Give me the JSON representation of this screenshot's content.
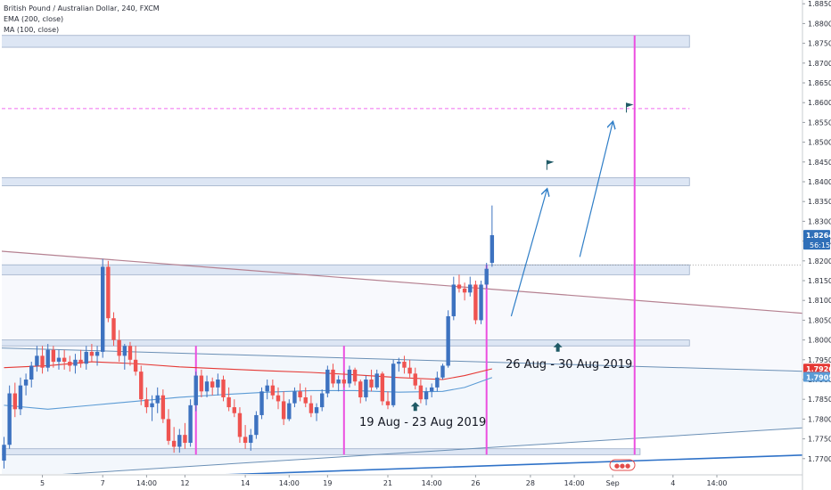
{
  "legend": {
    "symbol": "British Pound / Australian Dollar, 240, FXCM",
    "ema": "EMA (200, close)",
    "ma": "MA (100, close)"
  },
  "annotations": {
    "week1": "19 Aug - 23 Aug 2019",
    "week2": "26 Aug - 30 Aug 2019"
  },
  "colors": {
    "up": "#3d72c0",
    "down": "#ef5350",
    "ema": "#e53935",
    "ma": "#5b9bd5",
    "zone_fill": "#dde6f4",
    "zone_stroke": "#9cadc8",
    "vline": "#ec4fe0",
    "target": "#f06cf0",
    "trend_upper": "#b58191",
    "trend_mid": "#6a8fb5",
    "trend_lower": "#2f72c8",
    "arrow": "#2f7ec7",
    "marker": "#1f5a66"
  },
  "badges": {
    "price": {
      "value": "1.82645",
      "timer": "56:15",
      "color": "#2f6fb8"
    },
    "ema": {
      "value": "1.79265",
      "color": "#e53935"
    },
    "ma": {
      "value": "1.79055",
      "color": "#5b9bd5"
    }
  },
  "watermark": "●●●",
  "chart_data": {
    "type": "candlestick",
    "title": "British Pound / Australian Dollar, 240, FXCM",
    "y_axis": {
      "range": [
        1.765,
        1.8855
      ],
      "ticks": [
        "1.77000",
        "1.77500",
        "1.78000",
        "1.78500",
        "1.79000",
        "1.79500",
        "1.80000",
        "1.80500",
        "1.81000",
        "1.81500",
        "1.82000",
        "1.82500",
        "1.83000",
        "1.83500",
        "1.84000",
        "1.84500",
        "1.85000",
        "1.85500",
        "1.86000",
        "1.86500",
        "1.87000",
        "1.87500",
        "1.88000",
        "1.88500"
      ]
    },
    "x_axis": {
      "labels": [
        {
          "label": "5",
          "bar": 7
        },
        {
          "label": "7",
          "bar": 18
        },
        {
          "label": "14:00",
          "bar": 26
        },
        {
          "label": "12",
          "bar": 33
        },
        {
          "label": "14",
          "bar": 44
        },
        {
          "label": "14:00",
          "bar": 52
        },
        {
          "label": "19",
          "bar": 59
        },
        {
          "label": "21",
          "bar": 70
        },
        {
          "label": "14:00",
          "bar": 78
        },
        {
          "label": "26",
          "bar": 86
        },
        {
          "label": "28",
          "bar": 96
        },
        {
          "label": "14:00",
          "bar": 104
        },
        {
          "label": "Sep",
          "bar": 111
        },
        {
          "label": "4",
          "bar": 122
        },
        {
          "label": "14:00",
          "bar": 130
        }
      ]
    },
    "candles_ohlc": [
      [
        1.7695,
        1.7755,
        1.7675,
        1.7735
      ],
      [
        1.7735,
        1.7885,
        1.7725,
        1.7865
      ],
      [
        1.7865,
        1.7892,
        1.7805,
        1.7825
      ],
      [
        1.7825,
        1.7905,
        1.781,
        1.7885
      ],
      [
        1.7885,
        1.7915,
        1.786,
        1.79
      ],
      [
        1.79,
        1.7945,
        1.788,
        1.7935
      ],
      [
        1.7935,
        1.7985,
        1.792,
        1.796
      ],
      [
        1.796,
        1.7985,
        1.7915,
        1.793
      ],
      [
        1.793,
        1.799,
        1.792,
        1.7975
      ],
      [
        1.7975,
        1.7985,
        1.793,
        1.7945
      ],
      [
        1.7945,
        1.7975,
        1.7925,
        1.7955
      ],
      [
        1.7955,
        1.7975,
        1.7925,
        1.7945
      ],
      [
        1.7945,
        1.796,
        1.792,
        1.7935
      ],
      [
        1.7935,
        1.7965,
        1.7915,
        1.795
      ],
      [
        1.795,
        1.7975,
        1.793,
        1.794
      ],
      [
        1.794,
        1.7985,
        1.7925,
        1.797
      ],
      [
        1.797,
        1.799,
        1.7945,
        1.796
      ],
      [
        1.796,
        1.7985,
        1.7935,
        1.797
      ],
      [
        1.797,
        1.8205,
        1.7955,
        1.8185
      ],
      [
        1.8185,
        1.82,
        1.8045,
        1.8055
      ],
      [
        1.8055,
        1.807,
        1.7985,
        1.8
      ],
      [
        1.8,
        1.8025,
        1.7945,
        1.796
      ],
      [
        1.796,
        1.799,
        1.7925,
        1.7985
      ],
      [
        1.7985,
        1.7995,
        1.7935,
        1.795
      ],
      [
        1.795,
        1.7985,
        1.791,
        1.792
      ],
      [
        1.792,
        1.7935,
        1.7835,
        1.785
      ],
      [
        1.785,
        1.788,
        1.7815,
        1.783
      ],
      [
        1.783,
        1.786,
        1.7795,
        1.784
      ],
      [
        1.784,
        1.788,
        1.7815,
        1.786
      ],
      [
        1.786,
        1.7875,
        1.779,
        1.78
      ],
      [
        1.78,
        1.7825,
        1.7735,
        1.7745
      ],
      [
        1.7745,
        1.778,
        1.7715,
        1.773
      ],
      [
        1.773,
        1.7775,
        1.7715,
        1.776
      ],
      [
        1.776,
        1.779,
        1.7725,
        1.774
      ],
      [
        1.774,
        1.785,
        1.773,
        1.7835
      ],
      [
        1.7835,
        1.792,
        1.782,
        1.791
      ],
      [
        1.791,
        1.7925,
        1.7855,
        1.787
      ],
      [
        1.787,
        1.791,
        1.7855,
        1.7895
      ],
      [
        1.7895,
        1.7905,
        1.786,
        1.788
      ],
      [
        1.788,
        1.7915,
        1.786,
        1.79
      ],
      [
        1.79,
        1.791,
        1.7845,
        1.7855
      ],
      [
        1.7855,
        1.788,
        1.782,
        1.783
      ],
      [
        1.783,
        1.785,
        1.7805,
        1.7815
      ],
      [
        1.7815,
        1.783,
        1.774,
        1.7755
      ],
      [
        1.7755,
        1.7785,
        1.7725,
        1.774
      ],
      [
        1.774,
        1.7775,
        1.772,
        1.776
      ],
      [
        1.776,
        1.782,
        1.775,
        1.781
      ],
      [
        1.781,
        1.788,
        1.78,
        1.787
      ],
      [
        1.787,
        1.79,
        1.785,
        1.7885
      ],
      [
        1.7885,
        1.79,
        1.785,
        1.786
      ],
      [
        1.786,
        1.788,
        1.7825,
        1.7845
      ],
      [
        1.7845,
        1.787,
        1.7785,
        1.78
      ],
      [
        1.78,
        1.785,
        1.7795,
        1.784
      ],
      [
        1.784,
        1.788,
        1.783,
        1.787
      ],
      [
        1.787,
        1.789,
        1.7845,
        1.7855
      ],
      [
        1.7855,
        1.788,
        1.783,
        1.784
      ],
      [
        1.784,
        1.786,
        1.7805,
        1.7815
      ],
      [
        1.7815,
        1.784,
        1.7795,
        1.783
      ],
      [
        1.783,
        1.7875,
        1.782,
        1.7865
      ],
      [
        1.7865,
        1.7935,
        1.7855,
        1.7925
      ],
      [
        1.7925,
        1.794,
        1.788,
        1.789
      ],
      [
        1.789,
        1.791,
        1.787,
        1.79
      ],
      [
        1.79,
        1.792,
        1.788,
        1.789
      ],
      [
        1.789,
        1.7935,
        1.788,
        1.7925
      ],
      [
        1.7925,
        1.793,
        1.7885,
        1.7895
      ],
      [
        1.7895,
        1.79,
        1.784,
        1.7855
      ],
      [
        1.7855,
        1.791,
        1.7845,
        1.79
      ],
      [
        1.79,
        1.7925,
        1.787,
        1.788
      ],
      [
        1.788,
        1.7925,
        1.7875,
        1.7915
      ],
      [
        1.7915,
        1.792,
        1.7835,
        1.7845
      ],
      [
        1.7845,
        1.787,
        1.7825,
        1.7835
      ],
      [
        1.7835,
        1.795,
        1.783,
        1.794
      ],
      [
        1.794,
        1.7955,
        1.792,
        1.7945
      ],
      [
        1.7945,
        1.796,
        1.7915,
        1.793
      ],
      [
        1.793,
        1.795,
        1.7905,
        1.7915
      ],
      [
        1.7915,
        1.793,
        1.7875,
        1.7885
      ],
      [
        1.7885,
        1.79,
        1.784,
        1.785
      ],
      [
        1.785,
        1.788,
        1.7835,
        1.787
      ],
      [
        1.787,
        1.789,
        1.7855,
        1.788
      ],
      [
        1.788,
        1.792,
        1.787,
        1.7905
      ],
      [
        1.7905,
        1.794,
        1.79,
        1.7935
      ],
      [
        1.7935,
        1.8075,
        1.793,
        1.806
      ],
      [
        1.806,
        1.816,
        1.805,
        1.814
      ],
      [
        1.814,
        1.8165,
        1.812,
        1.813
      ],
      [
        1.813,
        1.8145,
        1.81,
        1.812
      ],
      [
        1.812,
        1.816,
        1.811,
        1.814
      ],
      [
        1.814,
        1.815,
        1.804,
        1.805
      ],
      [
        1.805,
        1.815,
        1.804,
        1.814
      ],
      [
        1.814,
        1.8195,
        1.813,
        1.818
      ],
      [
        1.8195,
        1.834,
        1.8185,
        1.8265
      ]
    ],
    "ema_200": [
      {
        "bar": 0,
        "v": 1.793
      },
      {
        "bar": 8,
        "v": 1.7935
      },
      {
        "bar": 16,
        "v": 1.7945
      },
      {
        "bar": 24,
        "v": 1.794
      },
      {
        "bar": 32,
        "v": 1.7932
      },
      {
        "bar": 40,
        "v": 1.7927
      },
      {
        "bar": 48,
        "v": 1.7922
      },
      {
        "bar": 56,
        "v": 1.7918
      },
      {
        "bar": 64,
        "v": 1.7912
      },
      {
        "bar": 72,
        "v": 1.7905
      },
      {
        "bar": 80,
        "v": 1.79
      },
      {
        "bar": 84,
        "v": 1.791
      },
      {
        "bar": 89,
        "v": 1.7927
      }
    ],
    "ma_100": [
      {
        "bar": 0,
        "v": 1.7835
      },
      {
        "bar": 8,
        "v": 1.7825
      },
      {
        "bar": 16,
        "v": 1.7835
      },
      {
        "bar": 24,
        "v": 1.7845
      },
      {
        "bar": 32,
        "v": 1.7855
      },
      {
        "bar": 40,
        "v": 1.7862
      },
      {
        "bar": 48,
        "v": 1.7868
      },
      {
        "bar": 56,
        "v": 1.7872
      },
      {
        "bar": 64,
        "v": 1.7872
      },
      {
        "bar": 72,
        "v": 1.7868
      },
      {
        "bar": 80,
        "v": 1.787
      },
      {
        "bar": 84,
        "v": 1.788
      },
      {
        "bar": 89,
        "v": 1.7905
      }
    ],
    "zones": [
      {
        "from_bar": -1,
        "to_bar": 125,
        "top": 1.877,
        "bottom": 1.874
      },
      {
        "from_bar": -1,
        "to_bar": 125,
        "top": 1.841,
        "bottom": 1.839
      },
      {
        "from_bar": -1,
        "to_bar": 125,
        "top": 1.819,
        "bottom": 1.8165
      },
      {
        "from_bar": -1,
        "to_bar": 125,
        "top": 1.8,
        "bottom": 1.7985
      },
      {
        "from_bar": -1,
        "to_bar": 116,
        "top": 1.7725,
        "bottom": 1.771
      }
    ],
    "trendlines": [
      {
        "name": "upper",
        "from": {
          "bar": -1,
          "v": 1.8225
        },
        "to": {
          "bar": 148,
          "v": 1.8065
        }
      },
      {
        "name": "middle",
        "from": {
          "bar": -1,
          "v": 1.798
        },
        "to": {
          "bar": 148,
          "v": 1.792
        }
      },
      {
        "name": "lower-thin",
        "from": {
          "bar": -1,
          "v": 1.765
        },
        "to": {
          "bar": 148,
          "v": 1.778
        }
      },
      {
        "name": "lower",
        "from": {
          "bar": -1,
          "v": 1.764
        },
        "to": {
          "bar": 148,
          "v": 1.771
        }
      }
    ],
    "target_level": 1.8585,
    "week_separators": [
      {
        "bar": 35,
        "top": 1.7985,
        "bottom": 1.771
      },
      {
        "bar": 62,
        "top": 1.7985,
        "bottom": 1.771
      },
      {
        "bar": 88,
        "top": 1.819,
        "bottom": 1.771
      }
    ],
    "target_vline": {
      "bar": 115,
      "top": 1.877,
      "bottom": 1.771
    },
    "projection_arrows": [
      {
        "from": {
          "bar": 92.5,
          "v": 1.806
        },
        "to": {
          "bar": 99,
          "v": 1.838
        }
      },
      {
        "from": {
          "bar": 105,
          "v": 1.821
        },
        "to": {
          "bar": 111,
          "v": 1.855
        }
      }
    ],
    "flags": [
      {
        "bar": 99,
        "v": 1.843
      },
      {
        "bar": 113.5,
        "v": 1.8575
      }
    ],
    "up_markers": [
      {
        "bar": 75,
        "v": 1.7825
      },
      {
        "bar": 101,
        "v": 1.7975
      }
    ]
  }
}
